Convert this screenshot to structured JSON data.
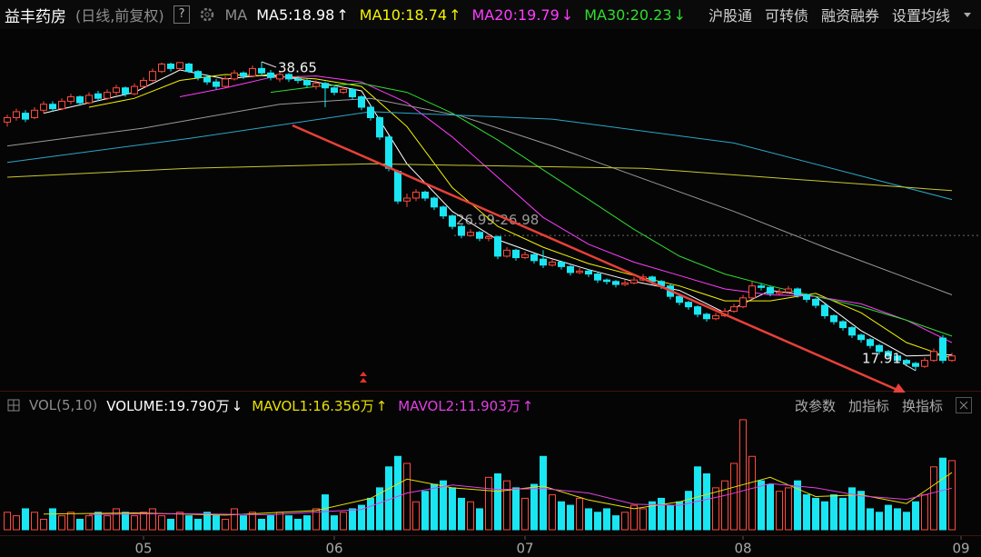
{
  "header": {
    "title": "益丰药房",
    "subtitle": "(日线,前复权)",
    "help": "?",
    "ma_button": "MA",
    "menu": [
      "沪股通",
      "可转债",
      "融资融券",
      "设置均线"
    ]
  },
  "chart_data": [
    {
      "type": "candlestick",
      "xlim": [
        -0.8,
        107.2
      ],
      "ylim": [
        16.87,
        40.97
      ],
      "up_color": "#ff4a3d",
      "down_color": "#19e6f2",
      "max_label": 38.65,
      "min_label": 17.91,
      "gap": {
        "value": 26.99,
        "label": "26.99-26.98"
      },
      "candles": [
        [
          34.6,
          35.1,
          34.3,
          34.9
        ],
        [
          34.9,
          35.5,
          34.7,
          35.3
        ],
        [
          35.2,
          35.4,
          34.6,
          34.8
        ],
        [
          34.9,
          35.6,
          34.8,
          35.4
        ],
        [
          35.4,
          36.0,
          35.2,
          35.8
        ],
        [
          35.8,
          36.0,
          35.3,
          35.5
        ],
        [
          35.5,
          36.2,
          35.4,
          36.0
        ],
        [
          36.0,
          36.5,
          35.8,
          36.3
        ],
        [
          36.3,
          36.4,
          35.7,
          35.9
        ],
        [
          35.9,
          36.6,
          35.8,
          36.4
        ],
        [
          36.5,
          36.7,
          36.0,
          36.2
        ],
        [
          36.2,
          36.8,
          36.1,
          36.6
        ],
        [
          36.6,
          37.1,
          36.4,
          36.9
        ],
        [
          36.9,
          37.0,
          36.3,
          36.5
        ],
        [
          36.5,
          37.2,
          36.4,
          37.0
        ],
        [
          37.0,
          37.6,
          36.9,
          37.4
        ],
        [
          37.4,
          38.2,
          37.3,
          38.0
        ],
        [
          38.0,
          38.6,
          37.9,
          38.5
        ],
        [
          38.5,
          38.6,
          38.0,
          38.2
        ],
        [
          38.2,
          38.62,
          38.1,
          38.6
        ],
        [
          38.5,
          38.6,
          37.9,
          38.0
        ],
        [
          38.0,
          38.1,
          37.4,
          37.6
        ],
        [
          37.6,
          37.8,
          37.1,
          37.3
        ],
        [
          37.3,
          37.5,
          36.8,
          37.0
        ],
        [
          37.0,
          37.7,
          36.9,
          37.5
        ],
        [
          37.5,
          38.1,
          37.4,
          37.9
        ],
        [
          37.9,
          38.0,
          37.5,
          37.7
        ],
        [
          37.7,
          38.4,
          37.6,
          38.2
        ],
        [
          38.2,
          38.65,
          37.7,
          37.9
        ],
        [
          37.9,
          38.1,
          37.4,
          37.6
        ],
        [
          37.5,
          38.0,
          37.3,
          37.8
        ],
        [
          37.8,
          37.9,
          37.3,
          37.5
        ],
        [
          37.5,
          37.7,
          37.2,
          37.4
        ],
        [
          37.4,
          37.5,
          36.9,
          37.1
        ],
        [
          37.0,
          37.4,
          36.8,
          37.2
        ],
        [
          37.2,
          37.3,
          35.6,
          36.9
        ],
        [
          36.9,
          37.0,
          36.4,
          36.6
        ],
        [
          36.6,
          37.0,
          36.5,
          36.8
        ],
        [
          36.8,
          36.9,
          36.1,
          36.3
        ],
        [
          36.3,
          36.4,
          35.4,
          35.6
        ],
        [
          35.6,
          35.7,
          34.7,
          34.9
        ],
        [
          34.9,
          35.0,
          33.4,
          33.6
        ],
        [
          33.6,
          33.7,
          31.3,
          31.5
        ],
        [
          31.3,
          31.4,
          29.1,
          29.3
        ],
        [
          29.3,
          29.8,
          28.9,
          29.5
        ],
        [
          29.5,
          30.1,
          29.3,
          29.9
        ],
        [
          29.9,
          30.0,
          29.3,
          29.5
        ],
        [
          29.5,
          29.6,
          28.7,
          28.9
        ],
        [
          28.9,
          29.0,
          28.1,
          28.3
        ],
        [
          28.3,
          28.4,
          27.4,
          27.6
        ],
        [
          27.6,
          27.7,
          26.8,
          27.0
        ],
        [
          26.99,
          27.4,
          26.9,
          27.2
        ],
        [
          27.2,
          27.3,
          26.6,
          26.8
        ],
        [
          26.8,
          27.1,
          26.6,
          26.9
        ],
        [
          26.9,
          27.0,
          25.4,
          25.6
        ],
        [
          25.6,
          26.2,
          25.5,
          26.0
        ],
        [
          26.0,
          26.1,
          25.3,
          25.5
        ],
        [
          25.5,
          25.9,
          25.4,
          25.7
        ],
        [
          25.7,
          25.8,
          25.1,
          25.3
        ],
        [
          25.4,
          26.0,
          24.8,
          25.0
        ],
        [
          25.0,
          25.4,
          24.9,
          25.2
        ],
        [
          25.2,
          25.3,
          24.7,
          24.9
        ],
        [
          24.9,
          25.0,
          24.3,
          24.5
        ],
        [
          24.5,
          24.8,
          24.4,
          24.6
        ],
        [
          24.6,
          24.7,
          24.2,
          24.4
        ],
        [
          24.4,
          24.5,
          23.8,
          24.0
        ],
        [
          24.0,
          24.1,
          23.7,
          23.9
        ],
        [
          23.9,
          24.0,
          23.5,
          23.7
        ],
        [
          23.7,
          24.0,
          23.6,
          23.8
        ],
        [
          23.8,
          24.2,
          23.7,
          24.0
        ],
        [
          24.0,
          24.4,
          23.9,
          24.2
        ],
        [
          24.2,
          24.3,
          23.7,
          23.9
        ],
        [
          23.9,
          24.0,
          23.4,
          23.6
        ],
        [
          23.6,
          23.7,
          22.7,
          22.9
        ],
        [
          22.9,
          23.0,
          22.3,
          22.5
        ],
        [
          22.5,
          22.6,
          22.0,
          22.2
        ],
        [
          22.2,
          22.3,
          21.5,
          21.7
        ],
        [
          21.7,
          21.8,
          21.2,
          21.4
        ],
        [
          21.4,
          21.8,
          21.3,
          21.6
        ],
        [
          21.6,
          22.1,
          21.5,
          21.9
        ],
        [
          21.9,
          22.4,
          21.8,
          22.2
        ],
        [
          22.2,
          23.0,
          22.1,
          22.8
        ],
        [
          22.8,
          23.9,
          22.7,
          23.6
        ],
        [
          23.6,
          23.8,
          23.3,
          23.5
        ],
        [
          23.5,
          23.6,
          22.9,
          23.1
        ],
        [
          23.1,
          23.4,
          23.0,
          23.2
        ],
        [
          23.2,
          23.6,
          23.1,
          23.4
        ],
        [
          23.4,
          23.5,
          22.8,
          23.0
        ],
        [
          23.0,
          23.1,
          22.5,
          22.7
        ],
        [
          22.7,
          22.8,
          22.1,
          22.3
        ],
        [
          22.3,
          22.4,
          21.4,
          21.6
        ],
        [
          21.6,
          21.7,
          21.0,
          21.2
        ],
        [
          21.2,
          21.3,
          20.6,
          20.8
        ],
        [
          20.8,
          20.9,
          20.1,
          20.3
        ],
        [
          20.3,
          20.4,
          19.8,
          20.0
        ],
        [
          20.0,
          20.1,
          19.4,
          19.6
        ],
        [
          19.6,
          19.7,
          19.0,
          19.2
        ],
        [
          19.2,
          19.3,
          18.7,
          18.9
        ],
        [
          18.9,
          19.0,
          18.4,
          18.6
        ],
        [
          18.6,
          18.7,
          18.2,
          18.4
        ],
        [
          18.4,
          18.5,
          17.91,
          18.2
        ],
        [
          18.2,
          18.8,
          18.1,
          18.6
        ],
        [
          18.6,
          19.4,
          18.5,
          19.2
        ],
        [
          20.1,
          20.3,
          18.4,
          18.6
        ],
        [
          18.6,
          19.1,
          18.5,
          18.9
        ]
      ],
      "series": [
        {
          "label": "MA5:18.98",
          "arrow": "↑",
          "color": "#ffffff",
          "x": [
            4,
            9,
            14,
            19,
            24,
            29,
            34,
            39,
            44,
            49,
            54,
            59,
            64,
            69,
            74,
            79,
            84,
            89,
            94,
            99,
            104
          ],
          "values": [
            35.2,
            35.9,
            36.6,
            38.1,
            37.5,
            37.8,
            37.3,
            36.7,
            31.8,
            28.6,
            26.7,
            25.6,
            24.7,
            23.9,
            23.3,
            21.8,
            23.3,
            22.9,
            20.6,
            18.9,
            18.98
          ]
        },
        {
          "label": "MA10:18.74",
          "arrow": "↑",
          "color": "#f5f500",
          "x": [
            9,
            14,
            19,
            24,
            29,
            34,
            39,
            44,
            49,
            54,
            59,
            64,
            69,
            74,
            79,
            84,
            89,
            94,
            99,
            104
          ],
          "values": [
            35.6,
            36.2,
            37.4,
            37.8,
            37.7,
            37.5,
            37.0,
            34.3,
            30.2,
            27.6,
            26.2,
            25.1,
            24.3,
            23.6,
            22.6,
            22.6,
            23.1,
            21.8,
            19.8,
            18.74
          ]
        },
        {
          "label": "MA20:19.79",
          "arrow": "↓",
          "color": "#ff3cff",
          "x": [
            19,
            24,
            29,
            34,
            39,
            44,
            49,
            54,
            59,
            64,
            69,
            74,
            79,
            84,
            89,
            94,
            99,
            104
          ],
          "values": [
            36.3,
            36.9,
            37.6,
            37.7,
            37.3,
            35.9,
            33.6,
            30.9,
            28.2,
            26.4,
            25.2,
            24.3,
            23.4,
            23.0,
            22.9,
            22.4,
            21.3,
            19.79
          ]
        },
        {
          "label": "MA30:20.23",
          "arrow": "↓",
          "color": "#2fdc2f",
          "x": [
            29,
            34,
            39,
            44,
            49,
            54,
            59,
            64,
            69,
            74,
            79,
            84,
            89,
            94,
            99,
            104
          ],
          "values": [
            36.6,
            37.0,
            37.2,
            36.6,
            35.2,
            33.4,
            31.4,
            29.4,
            27.4,
            25.6,
            24.4,
            23.6,
            22.9,
            22.2,
            21.3,
            20.23
          ]
        },
        {
          "color": "#9a9a9a",
          "x": [
            0,
            15,
            30,
            40,
            50,
            60,
            70,
            80,
            90,
            104
          ],
          "values": [
            33.0,
            34.2,
            35.8,
            36.2,
            35.0,
            33.0,
            30.8,
            28.6,
            26.2,
            23.0
          ]
        },
        {
          "color": "#2aa7c8",
          "x": [
            0,
            20,
            40,
            60,
            80,
            104
          ],
          "values": [
            31.9,
            33.5,
            35.3,
            34.8,
            33.2,
            29.4
          ]
        },
        {
          "color": "#c8c830",
          "x": [
            0,
            20,
            40,
            70,
            104
          ],
          "values": [
            30.9,
            31.5,
            31.8,
            31.5,
            30.0
          ]
        }
      ]
    },
    {
      "type": "bar",
      "title": "VOL(5,10)",
      "volume_label": "VOLUME:19.790万",
      "volume_arrow": "↓",
      "buttons": [
        "改参数",
        "加指标",
        "换指标"
      ],
      "xlim": [
        -0.8,
        107.2
      ],
      "ylim": [
        0,
        32
      ],
      "xticks": [
        {
          "value": 15,
          "label": "05"
        },
        {
          "value": 36,
          "label": "06"
        },
        {
          "value": 57,
          "label": "07"
        },
        {
          "value": 81,
          "label": "08"
        },
        {
          "value": 105,
          "label": "09"
        }
      ],
      "values": [
        5,
        4,
        6,
        5,
        3,
        6,
        4,
        5,
        3,
        4,
        5,
        4,
        6,
        5,
        4,
        5,
        6,
        4,
        3,
        5,
        4,
        3,
        5,
        4,
        3,
        6,
        4,
        5,
        3,
        4,
        5,
        4,
        3,
        4,
        6,
        10,
        4,
        5,
        6,
        7,
        9,
        12,
        18,
        21,
        19,
        8,
        11,
        13,
        14,
        12,
        9,
        8,
        6,
        15,
        16,
        14,
        12,
        9,
        13,
        21,
        10,
        8,
        7,
        9,
        6,
        5,
        6,
        4,
        5,
        7,
        6,
        8,
        9,
        7,
        8,
        11,
        18,
        16,
        12,
        14,
        19,
        31.5,
        21,
        14,
        13,
        11,
        12,
        14,
        10,
        9,
        8,
        10,
        9,
        12,
        11,
        6,
        5,
        7,
        6,
        5,
        8,
        10,
        18,
        20.5,
        19.79
      ],
      "series": [
        {
          "label": "MAVOL1:16.356万",
          "arrow": "↑",
          "color": "#e8e000",
          "x": [
            4,
            14,
            24,
            34,
            40,
            44,
            49,
            54,
            59,
            64,
            69,
            74,
            79,
            84,
            89,
            94,
            99,
            104
          ],
          "values": [
            4.5,
            4.8,
            4.2,
            5.5,
            9.0,
            14.5,
            12.0,
            11.0,
            12.5,
            8.5,
            6.0,
            8.0,
            11.5,
            15.0,
            9.5,
            10.0,
            7.5,
            16.356
          ]
        },
        {
          "label": "MAVOL2:11.903万",
          "arrow": "↑",
          "color": "#e040e0",
          "x": [
            9,
            19,
            29,
            39,
            44,
            49,
            54,
            59,
            64,
            69,
            74,
            79,
            84,
            89,
            94,
            99,
            104
          ],
          "values": [
            4.4,
            4.6,
            4.3,
            5.8,
            10.5,
            12.8,
            11.5,
            11.8,
            10.5,
            7.3,
            7.0,
            9.8,
            13.2,
            12.0,
            9.7,
            8.7,
            11.903
          ]
        }
      ]
    }
  ]
}
